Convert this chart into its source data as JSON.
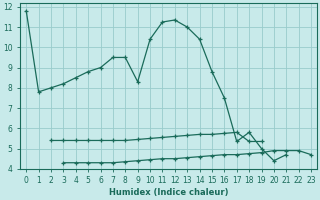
{
  "xlabel": "Humidex (Indice chaleur)",
  "background_color": "#c8eaea",
  "grid_color": "#99cccc",
  "line_color": "#1a6b5a",
  "xlim": [
    -0.5,
    23.5
  ],
  "ylim": [
    4,
    12.2
  ],
  "yticks": [
    4,
    5,
    6,
    7,
    8,
    9,
    10,
    11,
    12
  ],
  "xticks": [
    0,
    1,
    2,
    3,
    4,
    5,
    6,
    7,
    8,
    9,
    10,
    11,
    12,
    13,
    14,
    15,
    16,
    17,
    18,
    19,
    20,
    21,
    22,
    23
  ],
  "arch_x": [
    0,
    1,
    2,
    3,
    4,
    5,
    6,
    7,
    8,
    9,
    10,
    11,
    12,
    13,
    14,
    15,
    16,
    17,
    18,
    19,
    20,
    21,
    22
  ],
  "arch_y": [
    11.8,
    7.8,
    8.0,
    8.2,
    8.5,
    8.8,
    9.0,
    9.5,
    9.5,
    8.3,
    10.4,
    11.25,
    11.35,
    11.0,
    10.4,
    8.8,
    7.5,
    5.35,
    5.8,
    5.0,
    4.4,
    4.7,
    null
  ],
  "flat1_x": [
    2,
    3,
    4,
    5,
    6,
    7,
    8,
    9,
    10,
    11,
    12,
    13,
    14,
    15,
    16,
    17,
    18,
    19
  ],
  "flat1_y": [
    5.4,
    5.4,
    5.4,
    5.4,
    5.4,
    5.4,
    5.4,
    5.45,
    5.5,
    5.55,
    5.6,
    5.65,
    5.7,
    5.7,
    5.75,
    5.8,
    5.35,
    5.35
  ],
  "flat2_x": [
    3,
    4,
    5,
    6,
    7,
    8,
    9,
    10,
    11,
    12,
    13,
    14,
    15,
    16,
    17,
    18,
    19,
    20,
    21,
    22,
    23
  ],
  "flat2_y": [
    4.3,
    4.3,
    4.3,
    4.3,
    4.3,
    4.35,
    4.4,
    4.45,
    4.5,
    4.5,
    4.55,
    4.6,
    4.65,
    4.7,
    4.7,
    4.75,
    4.8,
    4.9,
    4.9,
    4.9,
    4.7
  ]
}
